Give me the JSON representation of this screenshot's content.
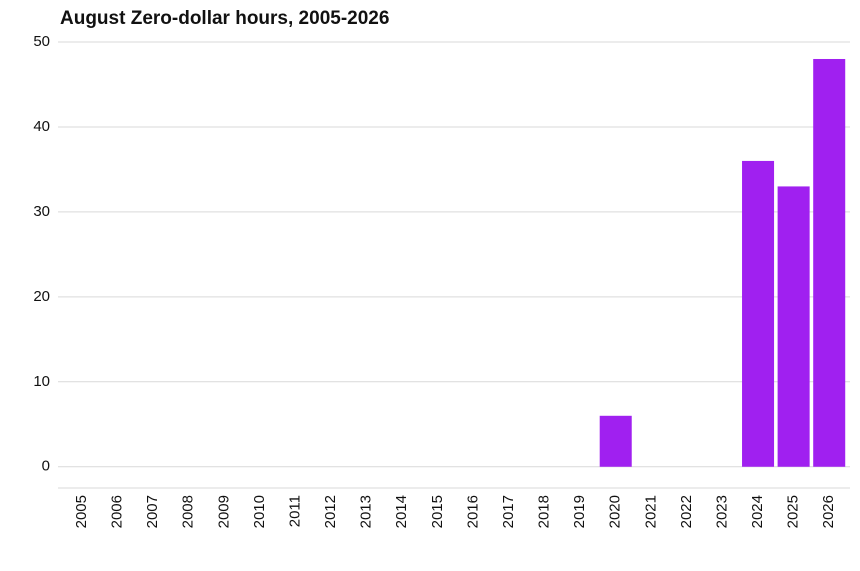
{
  "chart_data": {
    "type": "bar",
    "title": "August Zero-dollar hours, 2005-2026",
    "categories": [
      "2005",
      "2006",
      "2007",
      "2008",
      "2009",
      "2010",
      "2011",
      "2012",
      "2013",
      "2014",
      "2015",
      "2016",
      "2017",
      "2018",
      "2019",
      "2020",
      "2021",
      "2022",
      "2023",
      "2024",
      "2025",
      "2026"
    ],
    "values": [
      0,
      0,
      0,
      0,
      0,
      0,
      0,
      0,
      0,
      0,
      0,
      0,
      0,
      0,
      0,
      6,
      0,
      0,
      0,
      36,
      33,
      48
    ],
    "color": "#a020f0",
    "ylim": [
      -2.5,
      50
    ],
    "yticks": [
      0,
      10,
      20,
      30,
      40,
      50
    ],
    "grid": true
  }
}
